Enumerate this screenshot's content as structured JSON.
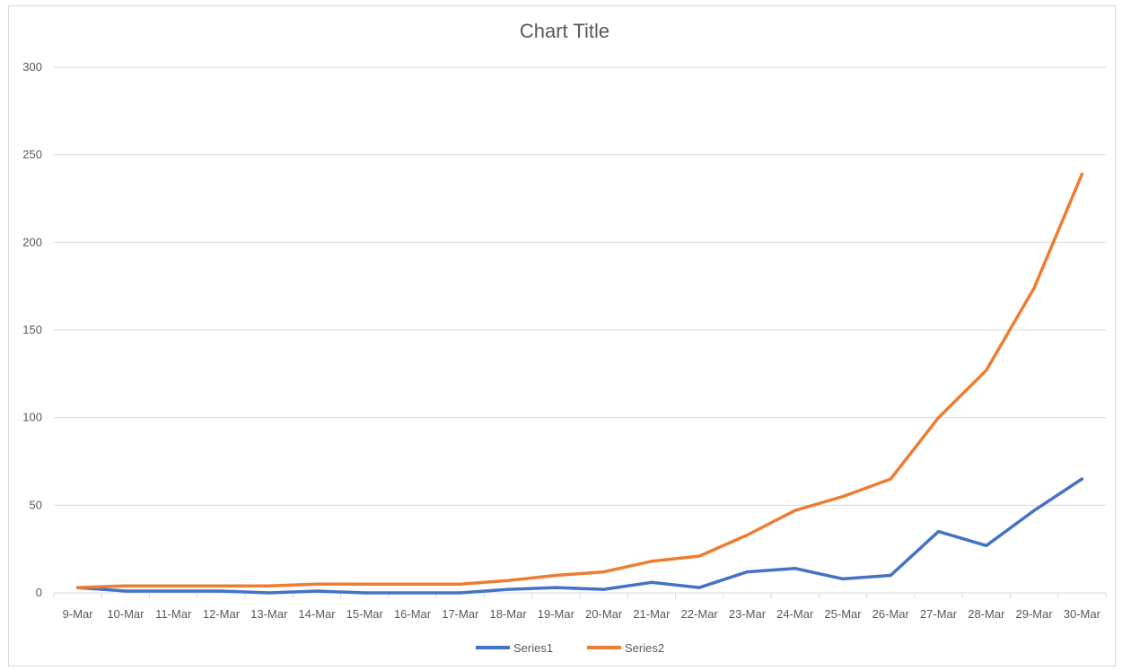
{
  "chart_data": {
    "type": "line",
    "title": "Chart Title",
    "xlabel": "",
    "ylabel": "",
    "ylim": [
      0,
      300
    ],
    "yticks": [
      "0",
      "50",
      "100",
      "150",
      "200",
      "250",
      "300"
    ],
    "grid": true,
    "legend_position": "bottom",
    "categories": [
      "9-Mar",
      "10-Mar",
      "11-Mar",
      "12-Mar",
      "13-Mar",
      "14-Mar",
      "15-Mar",
      "16-Mar",
      "17-Mar",
      "18-Mar",
      "19-Mar",
      "20-Mar",
      "21-Mar",
      "22-Mar",
      "23-Mar",
      "24-Mar",
      "25-Mar",
      "26-Mar",
      "27-Mar",
      "28-Mar",
      "29-Mar",
      "30-Mar"
    ],
    "series": [
      {
        "name": "Series1",
        "color": "#4472c4",
        "values": [
          3,
          1,
          1,
          1,
          0,
          1,
          0,
          0,
          0,
          2,
          3,
          2,
          6,
          3,
          12,
          14,
          8,
          10,
          35,
          27,
          47,
          65
        ]
      },
      {
        "name": "Series2",
        "color": "#ed7d31",
        "values": [
          3,
          4,
          4,
          4,
          4,
          5,
          5,
          5,
          5,
          7,
          10,
          12,
          18,
          21,
          33,
          47,
          55,
          65,
          100,
          127,
          174,
          239
        ]
      }
    ]
  }
}
